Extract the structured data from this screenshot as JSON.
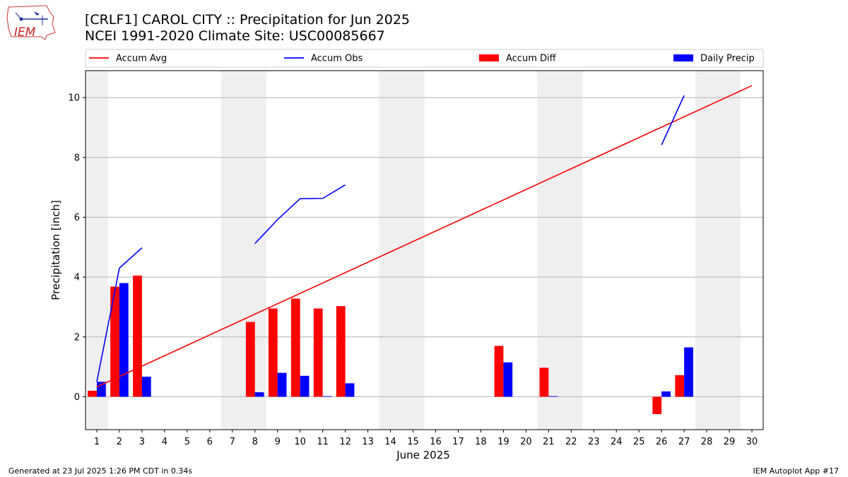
{
  "header": {
    "title_line1": "[CRLF1] CAROL CITY :: Precipitation for Jun 2025",
    "title_line2": "NCEI 1991-2020 Climate Site: USC00085667",
    "logo_text": "IEM"
  },
  "footer": {
    "left": "Generated at 23 Jul 2025 1:26 PM CDT in 0.34s",
    "right": "IEM Autoplot App #17"
  },
  "chart_data": {
    "type": "bar",
    "xlabel": "June 2025",
    "ylabel": "Precipitation [inch]",
    "xlim": [
      0.5,
      30.5
    ],
    "ylim": [
      -1.1,
      10.9
    ],
    "yticks": [
      0,
      2,
      4,
      6,
      8,
      10
    ],
    "xticks": [
      1,
      2,
      3,
      4,
      5,
      6,
      7,
      8,
      9,
      10,
      11,
      12,
      13,
      14,
      15,
      16,
      17,
      18,
      19,
      20,
      21,
      22,
      23,
      24,
      25,
      26,
      27,
      28,
      29,
      30
    ],
    "grid": "y",
    "legend_placement": "top",
    "weekend_shading": [
      [
        0.5,
        1.5
      ],
      [
        6.5,
        8.5
      ],
      [
        13.5,
        15.5
      ],
      [
        20.5,
        22.5
      ],
      [
        27.5,
        29.5
      ]
    ],
    "legend": [
      {
        "label": "Accum Avg",
        "kind": "line",
        "color": "#ff0000"
      },
      {
        "label": "Accum Obs",
        "kind": "line",
        "color": "#0000ff"
      },
      {
        "label": "Accum Diff",
        "kind": "bar",
        "color": "#ff0000"
      },
      {
        "label": "Daily Precip",
        "kind": "bar",
        "color": "#0000ff"
      }
    ],
    "series": [
      {
        "name": "Accum Avg",
        "type": "line",
        "color": "#ff0000",
        "points": [
          [
            1,
            0.33
          ],
          [
            30,
            10.4
          ]
        ]
      },
      {
        "name": "Accum Obs",
        "type": "line",
        "color": "#0000ff",
        "segments": [
          [
            [
              1,
              0.5
            ],
            [
              2,
              4.3
            ],
            [
              3,
              4.98
            ]
          ],
          [
            [
              8,
              5.12
            ],
            [
              9,
              5.92
            ],
            [
              10,
              6.62
            ],
            [
              11,
              6.63
            ],
            [
              12,
              7.08
            ]
          ],
          [
            [
              26,
              8.42
            ],
            [
              27,
              10.07
            ]
          ]
        ]
      },
      {
        "name": "Accum Diff",
        "type": "bar",
        "color": "#ff0000",
        "days": [
          1,
          2,
          3,
          8,
          9,
          10,
          11,
          12,
          19,
          21,
          26,
          27
        ],
        "values": [
          0.2,
          3.68,
          4.05,
          2.5,
          2.95,
          3.28,
          2.95,
          3.03,
          1.7,
          0.97,
          -0.58,
          0.72
        ]
      },
      {
        "name": "Daily Precip",
        "type": "bar",
        "color": "#0000ff",
        "days": [
          1,
          2,
          3,
          8,
          9,
          10,
          11,
          12,
          19,
          21,
          26,
          27
        ],
        "values": [
          0.5,
          3.8,
          0.67,
          0.15,
          0.8,
          0.7,
          0.02,
          0.45,
          1.15,
          0.02,
          0.18,
          1.65
        ]
      }
    ]
  }
}
